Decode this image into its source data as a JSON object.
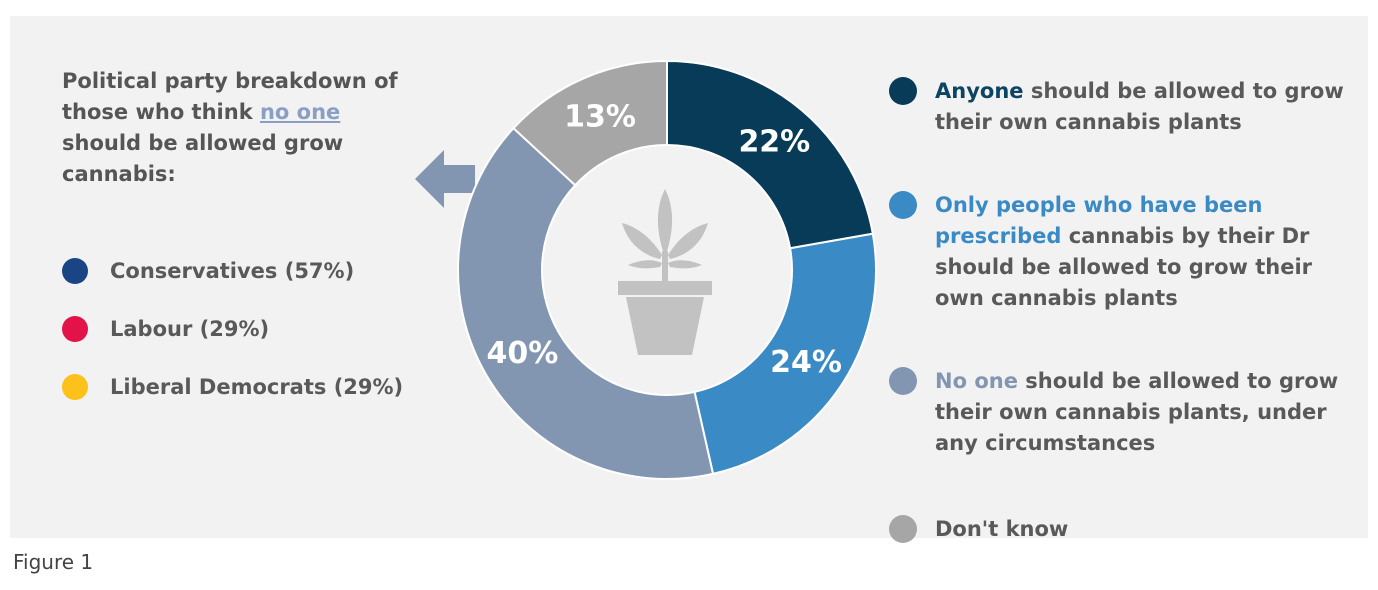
{
  "left_panel": {
    "title_before": "Political party breakdown of those who think ",
    "title_underlined": "no one",
    "title_after": " should be allowed grow cannabis:",
    "parties": [
      {
        "label": "Conservatives (57%)",
        "color": "#1a4585"
      },
      {
        "label": "Labour (29%)",
        "color": "#e3134a"
      },
      {
        "label": "Liberal Democrats (29%)",
        "color": "#fcc11a"
      }
    ]
  },
  "legend": [
    {
      "highlight": "Anyone",
      "rest": " should be allowed to grow their own cannabis plants",
      "color": "#073b57",
      "highlight_color": "#0c4462"
    },
    {
      "highlight": "Only people who have been prescribed",
      "rest": " cannabis by their Dr should be allowed to grow their own cannabis plants",
      "color": "#3a8ac5",
      "highlight_color": "#3a8ac5"
    },
    {
      "highlight": "No one",
      "rest": " should be allowed to grow their own cannabis plants, under any circumstances",
      "color": "#8296b2",
      "highlight_color": "#8296b2"
    },
    {
      "highlight": "",
      "rest": "Don't know",
      "color": "#a6a6a6",
      "highlight_color": "#a6a6a6"
    }
  ],
  "figure_label": "Figure 1",
  "icon": "cannabis-plant-pot-icon",
  "chart_data": {
    "type": "pie",
    "donut": true,
    "slices": [
      {
        "label": "22%",
        "value": 22,
        "color": "#073b57"
      },
      {
        "label": "24%",
        "value": 24,
        "color": "#3a8ac5"
      },
      {
        "label": "40%",
        "value": 40,
        "color": "#8296b2"
      },
      {
        "label": "13%",
        "value": 13,
        "color": "#a6a6a6"
      }
    ],
    "title": "",
    "legend_position": "right"
  }
}
